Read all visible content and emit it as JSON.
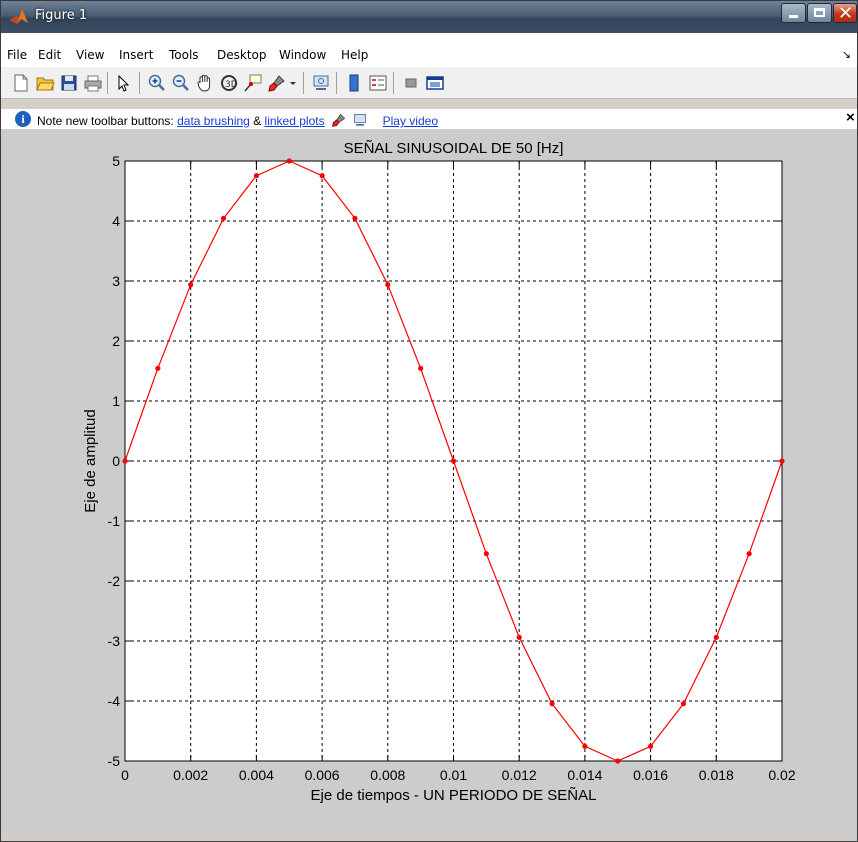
{
  "window": {
    "title": "Figure 1"
  },
  "menu": {
    "items": [
      "File",
      "Edit",
      "View",
      "Insert",
      "Tools",
      "Desktop",
      "Window",
      "Help"
    ],
    "corner_glyph": "↘"
  },
  "toolbar": {
    "icons": [
      "new-figure-icon",
      "open-file-icon",
      "save-icon",
      "print-icon",
      "edit-plot-arrow-icon",
      "zoom-in-icon",
      "zoom-out-icon",
      "pan-hand-icon",
      "rotate-3d-icon",
      "data-cursor-icon",
      "brush-icon",
      "brush-dropdown-icon",
      "link-plot-icon",
      "colorbar-icon",
      "legend-icon",
      "hide-plot-tools-icon",
      "show-plot-tools-icon"
    ]
  },
  "infobar": {
    "prefix": "Note new toolbar buttons:",
    "link1": "data brushing",
    "amp": "&",
    "link2": "linked plots",
    "link3": "Play video"
  },
  "colors": {
    "series": "#ff0000",
    "figure_bg": "#cccccc",
    "axes_bg": "#ffffff"
  },
  "chart_data": {
    "type": "line",
    "title": "SEÑAL SINUSOIDAL DE 50 [Hz]",
    "xlabel": "Eje de tiempos - UN PERIODO DE SEÑAL",
    "ylabel": "Eje de amplitud",
    "xlim": [
      0,
      0.02
    ],
    "ylim": [
      -5,
      5
    ],
    "xticks": [
      0,
      0.002,
      0.004,
      0.006,
      0.008,
      0.01,
      0.012,
      0.014,
      0.016,
      0.018,
      0.02
    ],
    "xtick_labels": [
      "0",
      "0.002",
      "0.004",
      "0.006",
      "0.008",
      "0.01",
      "0.012",
      "0.014",
      "0.016",
      "0.018",
      "0.02"
    ],
    "yticks": [
      5,
      4,
      3,
      2,
      1,
      0,
      -1,
      -2,
      -3,
      -4,
      -5
    ],
    "ytick_labels": [
      "5",
      "4",
      "3",
      "2",
      "1",
      "0",
      "-1",
      "-2",
      "-3",
      "-4",
      "-5"
    ],
    "grid": true,
    "marker": "dot",
    "series": [
      {
        "x": [
          0,
          0.001,
          0.002,
          0.003,
          0.004,
          0.005,
          0.006,
          0.007,
          0.008,
          0.009,
          0.01,
          0.011,
          0.012,
          0.013,
          0.014,
          0.015,
          0.016,
          0.017,
          0.018,
          0.019,
          0.02
        ],
        "y": [
          0,
          1.545,
          2.939,
          4.045,
          4.755,
          5,
          4.755,
          4.045,
          2.939,
          1.545,
          0,
          -1.545,
          -2.939,
          -4.045,
          -4.755,
          -5,
          -4.755,
          -4.045,
          -2.939,
          -1.545,
          0
        ]
      }
    ]
  }
}
